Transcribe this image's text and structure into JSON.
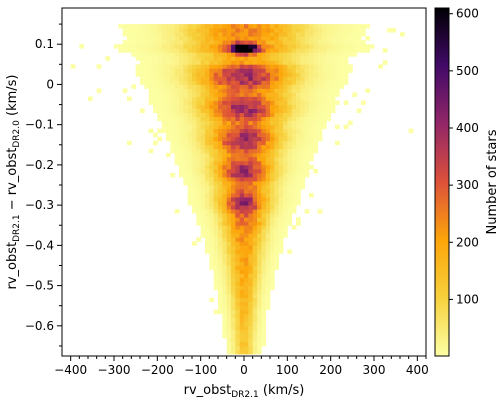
{
  "chart_data": {
    "type": "heatmap",
    "title": "",
    "xlabel": {
      "main": "rv_obst",
      "sub": "DR2.1",
      "unit": "(km/s)"
    },
    "ylabel": {
      "pre": "rv_obst",
      "sub1": "DR2.1",
      "mid": " − rv_obst",
      "sub2": "DR2.0",
      "unit": "(km/s)"
    },
    "xlim": [
      -420,
      420
    ],
    "ylim": [
      -0.675,
      0.19
    ],
    "x_ticks": [
      -400,
      -300,
      -200,
      -100,
      0,
      100,
      200,
      300,
      400
    ],
    "x_tick_labels": [
      "−400",
      "−300",
      "−200",
      "−100",
      "0",
      "100",
      "200",
      "300",
      "400"
    ],
    "y_ticks": [
      0.1,
      0.0,
      -0.1,
      -0.2,
      -0.3,
      -0.4,
      -0.5,
      -0.6
    ],
    "y_tick_labels": [
      "0.1",
      "0",
      "−0.1",
      "−0.2",
      "−0.3",
      "−0.4",
      "−0.5",
      "−0.6"
    ],
    "colorbar": {
      "label": "Number of stars",
      "range": [
        1,
        610
      ],
      "ticks": [
        100,
        200,
        300,
        400,
        500,
        600
      ],
      "tick_labels": [
        "100",
        "200",
        "300",
        "400",
        "500",
        "600"
      ],
      "colormap": "inferno_r",
      "stops": [
        "#fcffa4",
        "#f7d13d",
        "#fca50a",
        "#dd513a",
        "#932667",
        "#420a68",
        "#000004"
      ]
    },
    "density_model": {
      "description_of_distribution": "Funnel-shaped 2D histogram: narrow core near x=0 at low y, widening toward y≈0.1 with a dense ridge at y≈0.09",
      "peak_count": 610,
      "dense_row_y": 0.09,
      "x_bin_width_kms": 10,
      "y_bin_width_kms": 0.01
    }
  }
}
